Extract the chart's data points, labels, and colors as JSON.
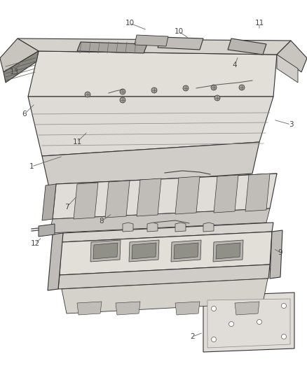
{
  "background_color": "#ffffff",
  "line_color": "#333333",
  "label_color": "#444444",
  "fig_width": 4.38,
  "fig_height": 5.33,
  "dpi": 100,
  "label_fontsize": 7.5,
  "parts_data": {
    "bumper_cover_color": "#e8e6e2",
    "bumper_inner_color": "#d8d5d0",
    "diffuser_color": "#dedad5",
    "beam_color": "#dedad5",
    "lp_bracket_color": "#e0ddd8",
    "connector_color": "#b0aeaa"
  }
}
